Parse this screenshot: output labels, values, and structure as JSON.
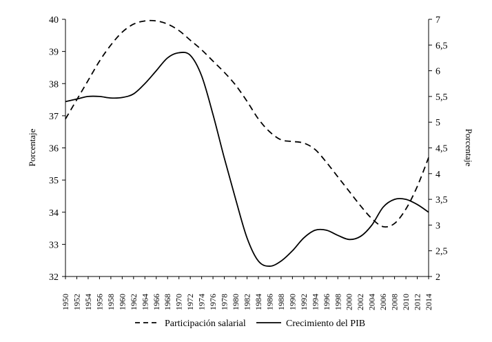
{
  "chart_data": {
    "type": "line",
    "title": "",
    "xlabel": "",
    "ylabel_left": "Porcentaje",
    "ylabel_right": "Porcentaje",
    "x_ticks": [
      "1950",
      "1952",
      "1954",
      "1956",
      "1958",
      "1960",
      "1962",
      "1964",
      "1966",
      "1968",
      "1970",
      "1972",
      "1974",
      "1976",
      "1978",
      "1980",
      "1982",
      "1984",
      "1986",
      "1988",
      "1990",
      "1992",
      "1994",
      "1996",
      "1998",
      "2000",
      "2002",
      "2004",
      "2006",
      "2008",
      "2010",
      "2012",
      "2014"
    ],
    "y_left": {
      "min": 32,
      "max": 40,
      "ticks": [
        "32",
        "33",
        "34",
        "35",
        "36",
        "37",
        "38",
        "39",
        "40"
      ]
    },
    "y_right": {
      "min": 2,
      "max": 7,
      "ticks": [
        "2",
        "2,5",
        "3",
        "3,5",
        "4",
        "4,5",
        "5",
        "5,5",
        "6",
        "6,5",
        "7"
      ]
    },
    "legend_position": "bottom",
    "grid": false,
    "series": [
      {
        "name": "Participación salarial",
        "axis": "left",
        "style": "dashed",
        "x": [
          1950,
          1952,
          1954,
          1956,
          1958,
          1960,
          1962,
          1964,
          1966,
          1968,
          1970,
          1972,
          1974,
          1976,
          1978,
          1980,
          1982,
          1984,
          1986,
          1988,
          1990,
          1992,
          1994,
          1996,
          1998,
          2000,
          2002,
          2004,
          2006,
          2008,
          2010,
          2012,
          2014
        ],
        "values": [
          36.9,
          37.5,
          38.1,
          38.7,
          39.2,
          39.6,
          39.85,
          39.95,
          39.95,
          39.85,
          39.65,
          39.35,
          39.05,
          38.7,
          38.35,
          37.95,
          37.45,
          36.9,
          36.5,
          36.25,
          36.2,
          36.15,
          35.95,
          35.55,
          35.1,
          34.65,
          34.2,
          33.8,
          33.55,
          33.65,
          34.1,
          34.8,
          35.7
        ]
      },
      {
        "name": "Crecimiento del PIB",
        "axis": "right",
        "style": "solid",
        "x": [
          1950,
          1952,
          1954,
          1956,
          1958,
          1960,
          1962,
          1964,
          1966,
          1968,
          1970,
          1972,
          1974,
          1976,
          1978,
          1980,
          1982,
          1984,
          1986,
          1988,
          1990,
          1992,
          1994,
          1996,
          1998,
          2000,
          2002,
          2004,
          2006,
          2008,
          2010,
          2012,
          2014
        ],
        "values": [
          5.4,
          5.45,
          5.5,
          5.5,
          5.47,
          5.48,
          5.55,
          5.75,
          6.0,
          6.25,
          6.35,
          6.3,
          5.9,
          5.15,
          4.3,
          3.5,
          2.75,
          2.3,
          2.2,
          2.3,
          2.5,
          2.75,
          2.9,
          2.9,
          2.8,
          2.72,
          2.78,
          3.0,
          3.35,
          3.5,
          3.5,
          3.4,
          3.25
        ]
      }
    ]
  }
}
